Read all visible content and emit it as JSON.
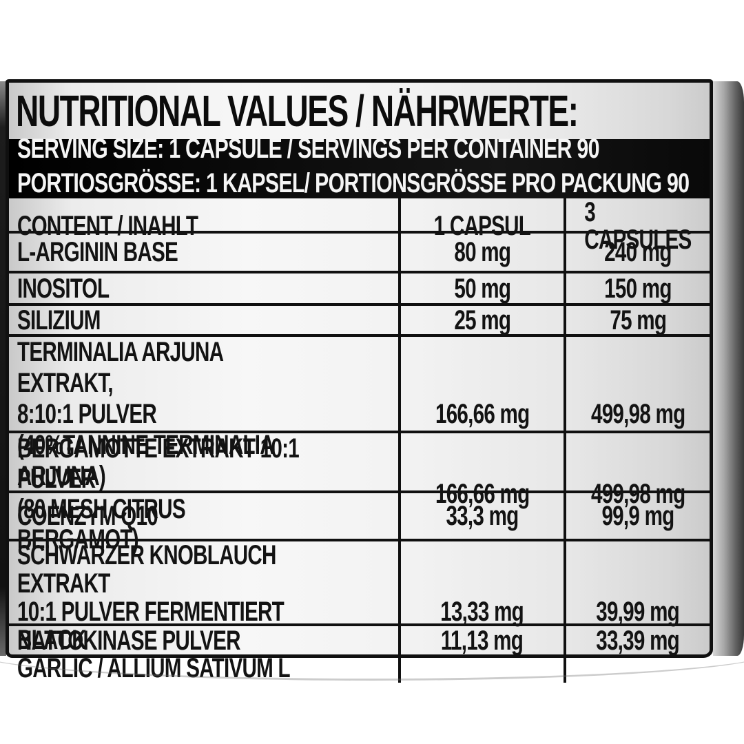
{
  "colors": {
    "table_border": "#101010",
    "serving_bar_background": "#0c0c0c",
    "serving_bar_text": "#f5f5f5",
    "label_text": "#131313",
    "label_silver": "#efefef"
  },
  "label": {
    "title": "NUTRITIONAL VALUES / NÄHRWERTE:",
    "serving_line_en": "SERVING SIZE: 1 CAPSULE / SERVINGS PER CONTAINER 90",
    "serving_line_de": "PORTIOSGRÖSSE: 1 KAPSEL/ PORTIONSGRÖSSE PRO PACKUNG 90",
    "table": {
      "header": {
        "content": "CONTENT / INAHLT",
        "per_1": "1 CAPSUL",
        "per_3": "3 CAPSULES"
      },
      "rows": [
        {
          "name": "L-ARGININ BASE",
          "per_capsule": "80 mg",
          "per_3_capsules": "240 mg"
        },
        {
          "name": "INOSITOL",
          "per_capsule": "50 mg",
          "per_3_capsules": "150 mg"
        },
        {
          "name": "SILIZIUM",
          "per_capsule": "25 mg",
          "per_3_capsules": "75 mg"
        },
        {
          "name": "TERMINALIA ARJUNA EXTRAKT,\n8:10:1 PULVER\n(40%TANNINE TERMINALIA ARJUNA)",
          "per_capsule": "166,66 mg",
          "per_3_capsules": "499,98 mg"
        },
        {
          "name": "BERGAMOTTE EXTRAKT 10:1 PULVER\n(80 MESH CITRUS BERGAMOT)",
          "per_capsule": "166,66 mg",
          "per_3_capsules": "499,98 mg"
        },
        {
          "name": "COENZYM Q10",
          "per_capsule": "33,3 mg",
          "per_3_capsules": "99,9 mg"
        },
        {
          "name": "SCHWARZER KNOBLAUCH EXTRAKT\n10:1 PULVER FERMENTIERT BLACK\nGARLIC / ALLIUM SATIVUM L",
          "per_capsule": "13,33 mg",
          "per_3_capsules": "39,99 mg"
        },
        {
          "name": "NATTOKINASE PULVER",
          "per_capsule": "11,13 mg",
          "per_3_capsules": "33,39 mg"
        }
      ]
    }
  }
}
